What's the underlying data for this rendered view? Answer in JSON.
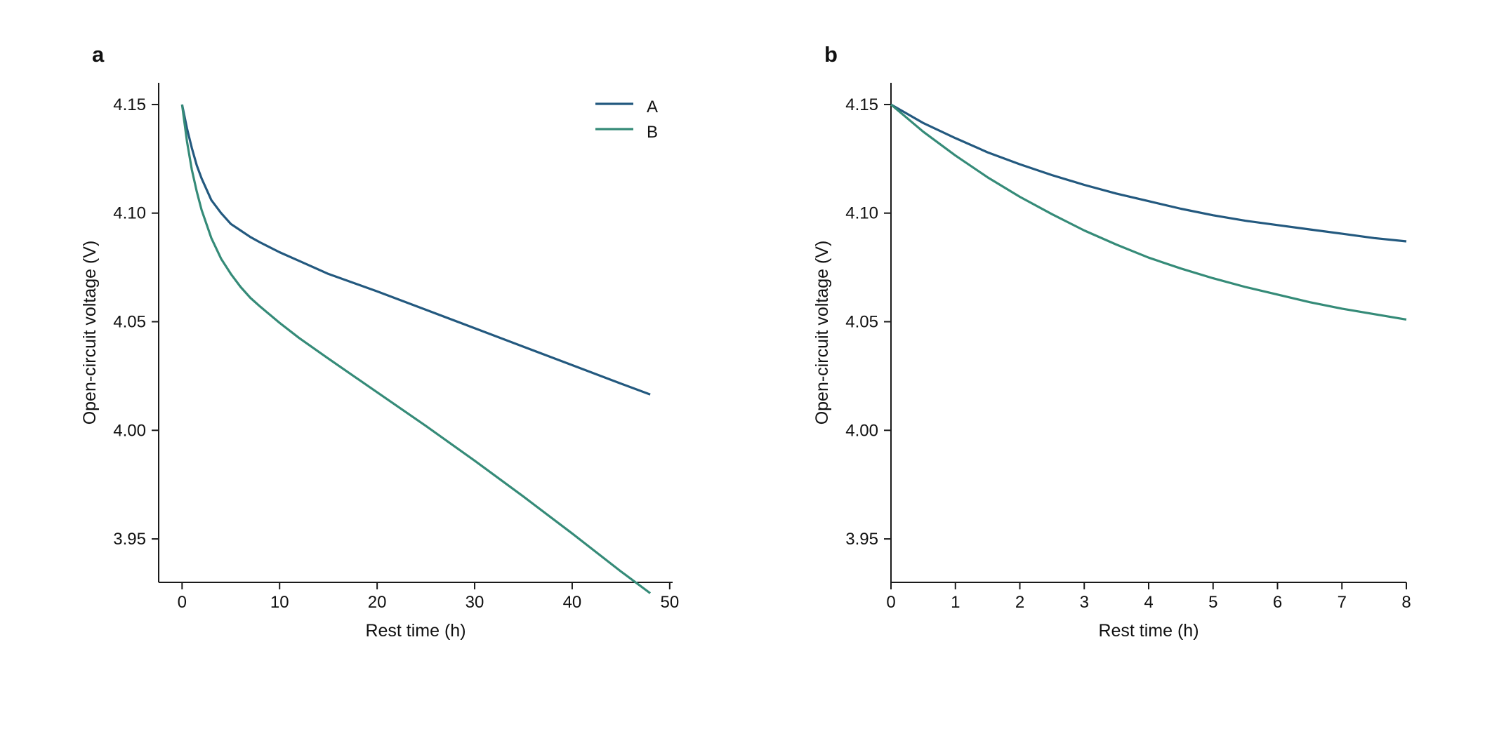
{
  "colors": {
    "A": "#23597f",
    "B": "#358b78"
  },
  "chart_data": [
    {
      "type": "line",
      "panel_label": "a",
      "xlabel": "Rest time (h)",
      "ylabel": "Open-circuit voltage (V)",
      "xlim": [
        -2.4,
        50.3
      ],
      "ylim": [
        3.93,
        4.16
      ],
      "xticks": [
        0,
        10,
        20,
        30,
        40,
        50
      ],
      "xtick_labels": [
        "0",
        "10",
        "20",
        "30",
        "40",
        "50"
      ],
      "yticks": [
        3.95,
        4.0,
        4.05,
        4.1,
        4.15
      ],
      "ytick_labels": [
        "3.95",
        "4.00",
        "4.05",
        "4.10",
        "4.15"
      ],
      "legend": {
        "position": "top-right",
        "entries": [
          "A",
          "B"
        ]
      },
      "series": [
        {
          "name": "A",
          "x": [
            0,
            0.5,
            1,
            1.5,
            2,
            3,
            4,
            5,
            6,
            7,
            8,
            10,
            12,
            15,
            20,
            25,
            30,
            35,
            40,
            45,
            48
          ],
          "y": [
            4.15,
            4.139,
            4.13,
            4.122,
            4.116,
            4.106,
            4.1,
            4.095,
            4.092,
            4.089,
            4.0865,
            4.082,
            4.078,
            4.072,
            4.064,
            4.0555,
            4.047,
            4.0385,
            4.03,
            4.0215,
            4.0165
          ]
        },
        {
          "name": "B",
          "x": [
            0,
            0.5,
            1,
            1.5,
            2,
            3,
            4,
            5,
            6,
            7,
            8,
            10,
            12,
            15,
            20,
            25,
            30,
            35,
            40,
            45,
            48
          ],
          "y": [
            4.15,
            4.133,
            4.12,
            4.11,
            4.1015,
            4.0885,
            4.079,
            4.072,
            4.066,
            4.061,
            4.057,
            4.0495,
            4.0425,
            4.033,
            4.0175,
            4.002,
            3.986,
            3.9695,
            3.9525,
            3.935,
            3.925
          ]
        }
      ]
    },
    {
      "type": "line",
      "panel_label": "b",
      "xlabel": "Rest time (h)",
      "ylabel": "Open-circuit voltage (V)",
      "xlim": [
        0,
        8
      ],
      "ylim": [
        3.93,
        4.16
      ],
      "xticks": [
        0,
        1,
        2,
        3,
        4,
        5,
        6,
        7,
        8
      ],
      "xtick_labels": [
        "0",
        "1",
        "2",
        "3",
        "4",
        "5",
        "6",
        "7",
        "8"
      ],
      "yticks": [
        3.95,
        4.0,
        4.05,
        4.1,
        4.15
      ],
      "ytick_labels": [
        "3.95",
        "4.00",
        "4.05",
        "4.10",
        "4.15"
      ],
      "series": [
        {
          "name": "A",
          "x": [
            0,
            0.5,
            1,
            1.5,
            2,
            2.5,
            3,
            3.5,
            4,
            4.5,
            5,
            5.5,
            6,
            6.5,
            7,
            7.5,
            8
          ],
          "y": [
            4.15,
            4.1415,
            4.1345,
            4.128,
            4.1225,
            4.1175,
            4.113,
            4.109,
            4.1055,
            4.102,
            4.099,
            4.0965,
            4.0945,
            4.0925,
            4.0905,
            4.0885,
            4.087
          ]
        },
        {
          "name": "B",
          "x": [
            0,
            0.5,
            1,
            1.5,
            2,
            2.5,
            3,
            3.5,
            4,
            4.5,
            5,
            5.5,
            6,
            6.5,
            7,
            7.5,
            8
          ],
          "y": [
            4.15,
            4.1375,
            4.1265,
            4.1165,
            4.1075,
            4.0995,
            4.092,
            4.0855,
            4.0795,
            4.0745,
            4.07,
            4.066,
            4.0625,
            4.059,
            4.056,
            4.0535,
            4.051
          ]
        }
      ]
    }
  ]
}
